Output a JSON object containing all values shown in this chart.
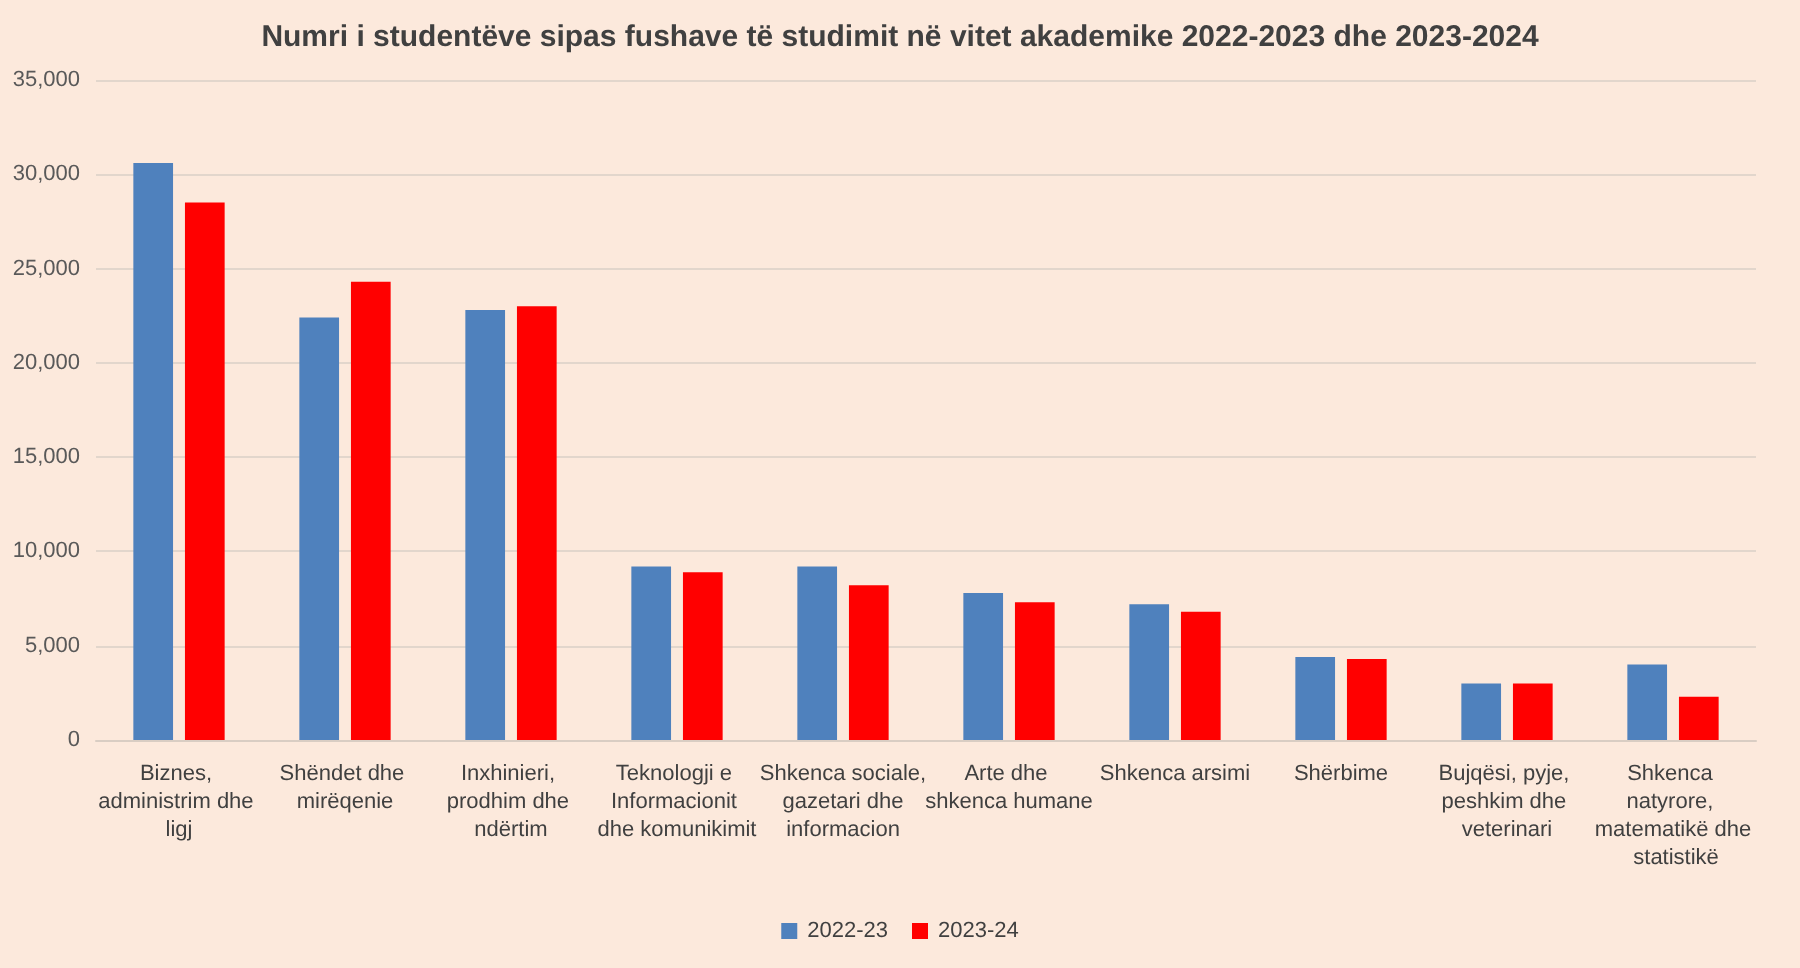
{
  "chart_data": {
    "type": "bar",
    "title": "Numri i studentëve sipas fushave të studimit në vitet akademike 2022-2023 dhe 2023-2024",
    "categories": [
      "Biznes, administrim dhe ligj",
      "Shëndet dhe mirëqenie",
      "Inxhinieri, prodhim dhe ndërtim",
      "Teknologji e Informacionit dhe komunikimit",
      "Shkenca sociale, gazetari dhe informacion",
      "Arte dhe shkenca humane",
      "Shkenca arsimi",
      "Shërbime",
      "Bujqësi, pyje, peshkim dhe veterinari",
      "Shkenca natyrore, matematikë dhe statistikë"
    ],
    "series": [
      {
        "name": "2022-23",
        "color": "#4f81bd",
        "values": [
          30600,
          22400,
          22800,
          9200,
          9200,
          7800,
          7200,
          4400,
          3000,
          4000
        ]
      },
      {
        "name": "2023-24",
        "color": "#ff0000",
        "values": [
          28500,
          24300,
          23000,
          8900,
          8200,
          7300,
          6800,
          4300,
          3000,
          2300
        ]
      }
    ],
    "ylim": [
      0,
      35000
    ],
    "yticks": [
      {
        "value": 0,
        "label": "0"
      },
      {
        "value": 5000,
        "label": "5,000"
      },
      {
        "value": 10000,
        "label": "10,000"
      },
      {
        "value": 15000,
        "label": "15,000"
      },
      {
        "value": 20000,
        "label": "20,000"
      },
      {
        "value": 25000,
        "label": "25,000"
      },
      {
        "value": 30000,
        "label": "30,000"
      },
      {
        "value": 35000,
        "label": "35,000"
      }
    ],
    "grid": "y",
    "legend": "bottom"
  }
}
